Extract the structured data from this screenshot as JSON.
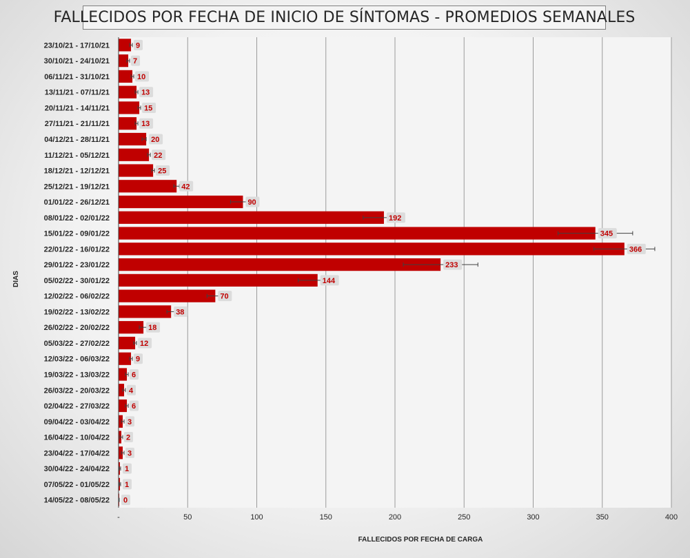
{
  "colors": {
    "bar": "#c00000",
    "plot_bg": "#f4f4f4",
    "grid": "#9a9a9a",
    "label_bg": "#dcdcdc",
    "error_bar": "#404040"
  },
  "chart_data": {
    "type": "bar",
    "orientation": "horizontal",
    "title": "FALLECIDOS POR FECHA DE INICIO DE SÍNTOMAS - PROMEDIOS SEMANALES",
    "xlabel": "FALLECIDOS POR FECHA DE CARGA",
    "ylabel": "DIAS",
    "xlim": [
      0,
      400
    ],
    "xticks": [
      0,
      50,
      100,
      150,
      200,
      250,
      300,
      350,
      400
    ],
    "xtick_labels": [
      "-",
      "50",
      "100",
      "150",
      "200",
      "250",
      "300",
      "350",
      "400"
    ],
    "grid": true,
    "categories": [
      "23/10/21 - 17/10/21",
      "30/10/21 - 24/10/21",
      "06/11/21 - 31/10/21",
      "13/11/21 - 07/11/21",
      "20/11/21 - 14/11/21",
      "27/11/21 - 21/11/21",
      "04/12/21 - 28/11/21",
      "11/12/21 - 05/12/21",
      "18/12/21 - 12/12/21",
      "25/12/21 - 19/12/21",
      "01/01/22 - 26/12/21",
      "08/01/22 - 02/01/22",
      "15/01/22 - 09/01/22",
      "22/01/22 - 16/01/22",
      "29/01/22 - 23/01/22",
      "05/02/22 - 30/01/22",
      "12/02/22 - 06/02/22",
      "19/02/22 - 13/02/22",
      "26/02/22 - 20/02/22",
      "05/03/22 - 27/02/22",
      "12/03/22 - 06/03/22",
      "19/03/22 - 13/03/22",
      "26/03/22 - 20/03/22",
      "02/04/22 - 27/03/22",
      "09/04/22 - 03/04/22",
      "16/04/22 - 10/04/22",
      "23/04/22 - 17/04/22",
      "30/04/22 - 24/04/22",
      "07/05/22 - 01/05/22",
      "14/05/22 - 08/05/22"
    ],
    "values": [
      9,
      7,
      10,
      13,
      15,
      13,
      20,
      22,
      25,
      42,
      90,
      192,
      345,
      366,
      233,
      144,
      70,
      38,
      18,
      12,
      9,
      6,
      4,
      6,
      3,
      2,
      3,
      1,
      1,
      0
    ],
    "value_labels": [
      "9",
      "7",
      "10",
      "13",
      "15",
      "13",
      "20",
      "22",
      "25",
      "42",
      "90",
      "192",
      "345",
      "366",
      "233",
      "144",
      "70",
      "38",
      "18",
      "12",
      "9",
      "6",
      "4",
      "6",
      "3",
      "2",
      "3",
      "1",
      "1",
      "0"
    ],
    "error_bars": [
      [
        8,
        10
      ],
      [
        6,
        8
      ],
      [
        9,
        11
      ],
      [
        12,
        14
      ],
      [
        14,
        16
      ],
      [
        12,
        14
      ],
      [
        17,
        20
      ],
      [
        21,
        23
      ],
      [
        24,
        26
      ],
      [
        40,
        44
      ],
      [
        81,
        99
      ],
      [
        177,
        207
      ],
      [
        318,
        372
      ],
      [
        344,
        388
      ],
      [
        206,
        260
      ],
      [
        130,
        158
      ],
      [
        64,
        76
      ],
      [
        35,
        41
      ],
      [
        15,
        21
      ],
      [
        11,
        13
      ],
      [
        8,
        10
      ],
      [
        5,
        7
      ],
      [
        3,
        5
      ],
      [
        5,
        7
      ],
      [
        2,
        4
      ],
      [
        1,
        3
      ],
      [
        2,
        4
      ],
      [
        0.5,
        1.5
      ],
      [
        0.5,
        1.5
      ],
      [
        0,
        0.5
      ]
    ]
  }
}
